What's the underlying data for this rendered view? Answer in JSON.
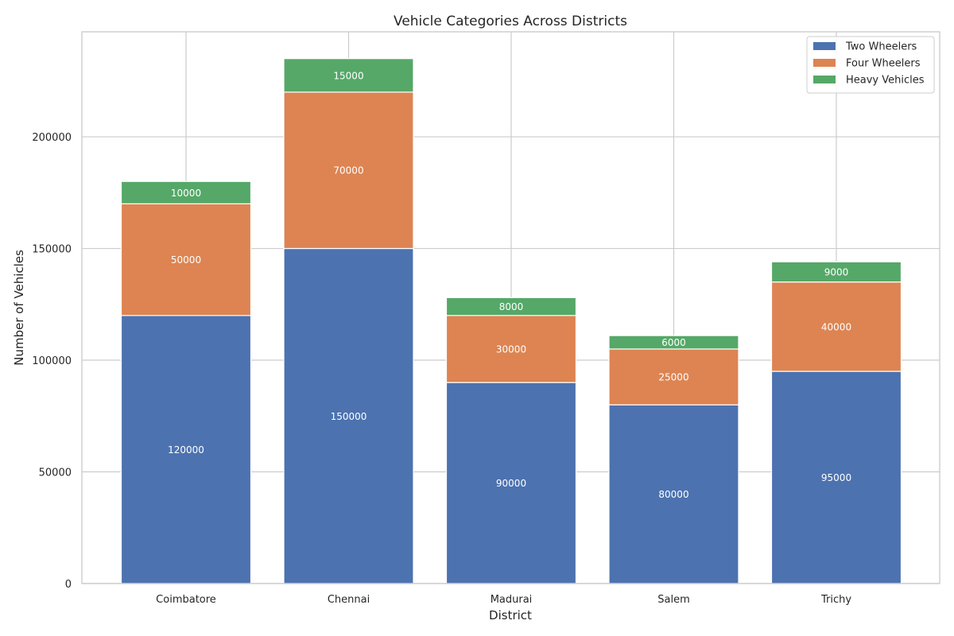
{
  "chart_data": {
    "type": "bar",
    "stacked": true,
    "title": "Vehicle Categories Across Districts",
    "xlabel": "District",
    "ylabel": "Number of Vehicles",
    "categories": [
      "Coimbatore",
      "Chennai",
      "Madurai",
      "Salem",
      "Trichy"
    ],
    "series": [
      {
        "name": "Two Wheelers",
        "color": "#4c72b0",
        "values": [
          120000,
          150000,
          90000,
          80000,
          95000
        ]
      },
      {
        "name": "Four Wheelers",
        "color": "#dd8452",
        "values": [
          50000,
          70000,
          30000,
          25000,
          40000
        ]
      },
      {
        "name": "Heavy Vehicles",
        "color": "#55a868",
        "values": [
          10000,
          15000,
          8000,
          6000,
          9000
        ]
      }
    ],
    "ylim": [
      0,
      247000
    ],
    "yticks": [
      0,
      50000,
      100000,
      150000,
      200000
    ],
    "grid": true,
    "legend_position": "top-right",
    "data_labels": true
  }
}
